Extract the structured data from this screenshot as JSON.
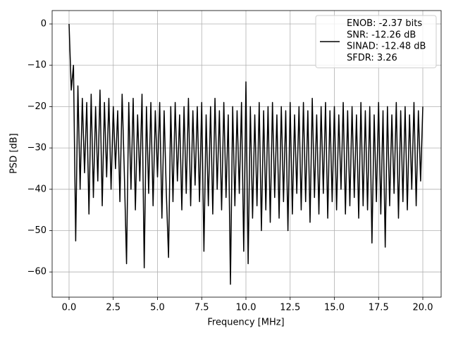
{
  "chart_data": {
    "type": "line",
    "xlabel": "Frequency [MHz]",
    "ylabel": "PSD [dB]",
    "xlim": [
      -0.956,
      21.036
    ],
    "ylim": [
      -66.1,
      3.24
    ],
    "xticks": [
      {
        "value": 0,
        "label": "0.0"
      },
      2.5,
      {
        "value": 5,
        "label": "5.0"
      },
      7.5,
      {
        "value": 10,
        "label": "10.0"
      },
      12.5,
      {
        "value": 15,
        "label": "15.0"
      },
      17.5,
      {
        "value": 20,
        "label": "20.0"
      }
    ],
    "yticks": [
      {
        "value": -60,
        "label": "−60"
      },
      {
        "value": -50,
        "label": "−50"
      },
      {
        "value": -40,
        "label": "−40"
      },
      {
        "value": -30,
        "label": "−30"
      },
      {
        "value": -20,
        "label": "−20"
      },
      {
        "value": -10,
        "label": "−10"
      },
      0
    ],
    "grid": true,
    "legend": "upper right",
    "x": [
      0,
      0.125,
      0.25,
      0.375,
      0.5,
      0.625,
      0.75,
      0.875,
      1,
      1.125,
      1.25,
      1.375,
      1.5,
      1.625,
      1.75,
      1.875,
      2,
      2.125,
      2.25,
      2.375,
      2.5,
      2.625,
      2.75,
      2.875,
      3,
      3.125,
      3.25,
      3.375,
      3.5,
      3.625,
      3.75,
      3.875,
      4,
      4.125,
      4.25,
      4.375,
      4.5,
      4.625,
      4.75,
      4.875,
      5,
      5.125,
      5.25,
      5.375,
      5.5,
      5.625,
      5.75,
      5.875,
      6,
      6.125,
      6.25,
      6.375,
      6.5,
      6.625,
      6.75,
      6.875,
      7,
      7.125,
      7.25,
      7.375,
      7.5,
      7.625,
      7.75,
      7.875,
      8,
      8.125,
      8.25,
      8.375,
      8.5,
      8.625,
      8.75,
      8.875,
      9,
      9.125,
      9.25,
      9.375,
      9.5,
      9.625,
      9.75,
      9.875,
      10,
      10.125,
      10.25,
      10.375,
      10.5,
      10.625,
      10.75,
      10.875,
      11,
      11.125,
      11.25,
      11.375,
      11.5,
      11.625,
      11.75,
      11.875,
      12,
      12.125,
      12.25,
      12.375,
      12.5,
      12.625,
      12.75,
      12.875,
      13,
      13.125,
      13.25,
      13.375,
      13.5,
      13.625,
      13.75,
      13.875,
      14,
      14.125,
      14.25,
      14.375,
      14.5,
      14.625,
      14.75,
      14.875,
      15,
      15.125,
      15.25,
      15.375,
      15.5,
      15.625,
      15.75,
      15.875,
      16,
      16.125,
      16.25,
      16.375,
      16.5,
      16.625,
      16.75,
      16.875,
      17,
      17.125,
      17.25,
      17.375,
      17.5,
      17.625,
      17.75,
      17.875,
      18,
      18.125,
      18.25,
      18.375,
      18.5,
      18.625,
      18.75,
      18.875,
      19,
      19.125,
      19.25,
      19.375,
      19.5,
      19.625,
      19.75,
      19.875,
      20
    ],
    "series": [
      {
        "name": "ENOB: -2.37 bits\nSNR: -12.26 dB\nSINAD: -12.48 dB\nSFDR: 3.26",
        "color": "#000000",
        "values": [
          0,
          -16,
          -10,
          -52.5,
          -15,
          -40,
          -18,
          -36,
          -19,
          -46,
          -17,
          -42,
          -20,
          -38,
          -16,
          -44,
          -19,
          -37,
          -18,
          -40,
          -20,
          -35,
          -21,
          -43,
          -17,
          -36,
          -58,
          -19,
          -40,
          -18,
          -45,
          -22,
          -38,
          -17,
          -59,
          -20,
          -41,
          -19,
          -44,
          -21,
          -37,
          -19,
          -47,
          -21,
          -41,
          -56.5,
          -20,
          -43,
          -19,
          -38,
          -22,
          -45,
          -20,
          -41,
          -18,
          -44,
          -21,
          -39,
          -20,
          -43,
          -19,
          -55,
          -22,
          -44,
          -20,
          -46,
          -18,
          -40,
          -21,
          -45,
          -19,
          -42,
          -22,
          -63,
          -20,
          -44,
          -21,
          -41,
          -19,
          -55,
          -14,
          -58,
          -20,
          -47,
          -22,
          -44,
          -19,
          -50,
          -21,
          -45,
          -20,
          -48,
          -19,
          -42,
          -22,
          -47,
          -20,
          -43,
          -21,
          -50,
          -19,
          -46,
          -22,
          -41,
          -20,
          -45,
          -19,
          -43,
          -21,
          -48,
          -18,
          -42,
          -22,
          -46,
          -20,
          -41,
          -19,
          -47,
          -21,
          -43,
          -20,
          -45,
          -22,
          -40,
          -19,
          -46,
          -21,
          -44,
          -20,
          -42,
          -22,
          -47,
          -19,
          -44,
          -21,
          -45,
          -20,
          -53,
          -22,
          -43,
          -19,
          -46,
          -21,
          -54,
          -20,
          -44,
          -22,
          -41,
          -19,
          -47,
          -21,
          -43,
          -20,
          -45,
          -22,
          -40,
          -19,
          -44,
          -21,
          -38,
          -20
        ]
      }
    ]
  }
}
